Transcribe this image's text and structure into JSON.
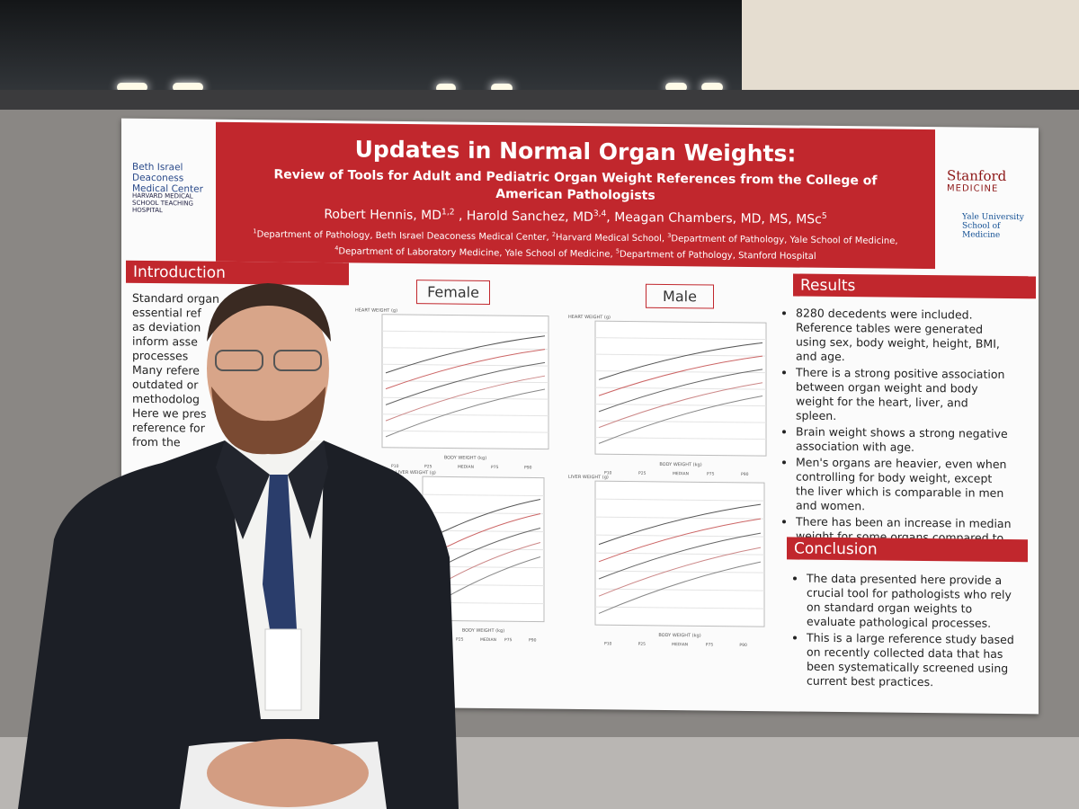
{
  "poster": {
    "title": "Updates in Normal Organ Weights:",
    "subtitle": "Review of Tools for Adult and Pediatric Organ Weight References from the College of American Pathologists",
    "authors": [
      {
        "name": "Robert Hennis, MD",
        "sup": "1,2"
      },
      {
        "name": " , Harold Sanchez, MD",
        "sup": "3,4"
      },
      {
        "name": ", Meagan Chambers, MD, MS, MSc",
        "sup": "5"
      }
    ],
    "affiliations": [
      {
        "sup": "1",
        "text": "Department of Pathology, Beth Israel Deaconess Medical Center, "
      },
      {
        "sup": "2",
        "text": "Harvard Medical School, "
      },
      {
        "sup": "3",
        "text": "Department of Pathology, Yale School of Medicine, "
      },
      {
        "sup": "4",
        "text": "Department of Laboratory Medicine, Yale School of Medicine, "
      },
      {
        "sup": "5",
        "text": "Department of Pathology, Stanford Hospital"
      }
    ],
    "logos": {
      "bidmc": "Beth Israel Deaconess Medical Center",
      "harvard": "HARVARD MEDICAL SCHOOL TEACHING HOSPITAL",
      "stanford_1": "Stanford",
      "stanford_2": "MEDICINE",
      "yale": "Yale University School of Medicine"
    },
    "introduction": {
      "heading": "Introduction",
      "lines": [
        "Standard organ",
        "essential ref",
        "as deviation",
        "inform asse",
        "processes",
        "Many refere",
        "outdated or",
        "methodolog",
        "Here we pres",
        "reference for",
        "from the"
      ]
    },
    "figures": {
      "female": "Female",
      "male": "Male",
      "heart_axis": "HEART WEIGHT (g)",
      "liver_axis": "LIVER WEIGHT (g)",
      "x_axis": "BODY WEIGHT (kg)",
      "legend": [
        "P10",
        "P25",
        "MEDIAN",
        "P75",
        "P90"
      ]
    },
    "results": {
      "heading": "Results",
      "items": [
        "8280 decedents were included. Reference tables were generated using sex, body weight, height, BMI, and age.",
        "There is a strong positive association between organ weight and body weight for the heart, liver, and spleen.",
        "Brain weight shows a strong negative association with age.",
        "Men's organs are heavier, even when controlling for body weight, except the liver  which is comparable in men and women.",
        "There has been an increase in median weight for some organs compared to existing references"
      ]
    },
    "conclusion": {
      "heading": "Conclusion",
      "items": [
        "The data presented here provide a crucial tool for pathologists who rely on standard organ weights to evaluate pathological processes.",
        "This is a large reference study based on recently collected data that has been systematically screened using current best practices."
      ]
    }
  }
}
